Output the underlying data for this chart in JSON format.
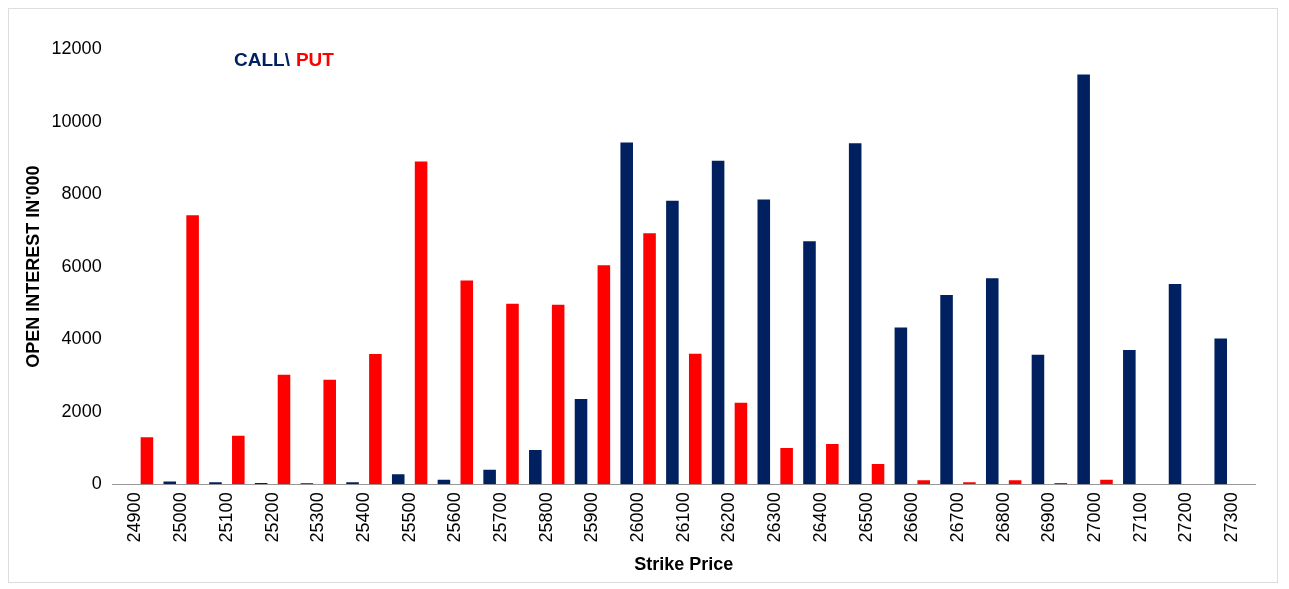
{
  "chart_data": {
    "type": "bar",
    "xlabel": "Strike Price",
    "ylabel": "OPEN INTEREST IN'000",
    "categories": [
      "24900",
      "25000",
      "25100",
      "25200",
      "25300",
      "25400",
      "25500",
      "25600",
      "25700",
      "25800",
      "25900",
      "26000",
      "26100",
      "26200",
      "26300",
      "26400",
      "26500",
      "26600",
      "26700",
      "26800",
      "26900",
      "27000",
      "27100",
      "27200",
      "27300"
    ],
    "series": [
      {
        "name": "CALL\\",
        "color": "#002060",
        "values": [
          null,
          80,
          60,
          40,
          30,
          60,
          280,
          130,
          400,
          950,
          2350,
          9420,
          7820,
          8920,
          7850,
          6700,
          9400,
          4320,
          5220,
          5680,
          3570,
          11300,
          3700,
          5520,
          4020
        ]
      },
      {
        "name": "PUT",
        "color": "#ff0000",
        "values": [
          1300,
          7420,
          1340,
          3020,
          2880,
          3590,
          8900,
          5620,
          4980,
          4950,
          6040,
          6920,
          3600,
          2250,
          1000,
          1110,
          560,
          110,
          60,
          110,
          40,
          130,
          null,
          null,
          null
        ]
      }
    ],
    "ylim": [
      0,
      12000
    ],
    "yticks": [
      0,
      2000,
      4000,
      6000,
      8000,
      10000,
      12000
    ],
    "grid": false,
    "legend": "top left"
  }
}
